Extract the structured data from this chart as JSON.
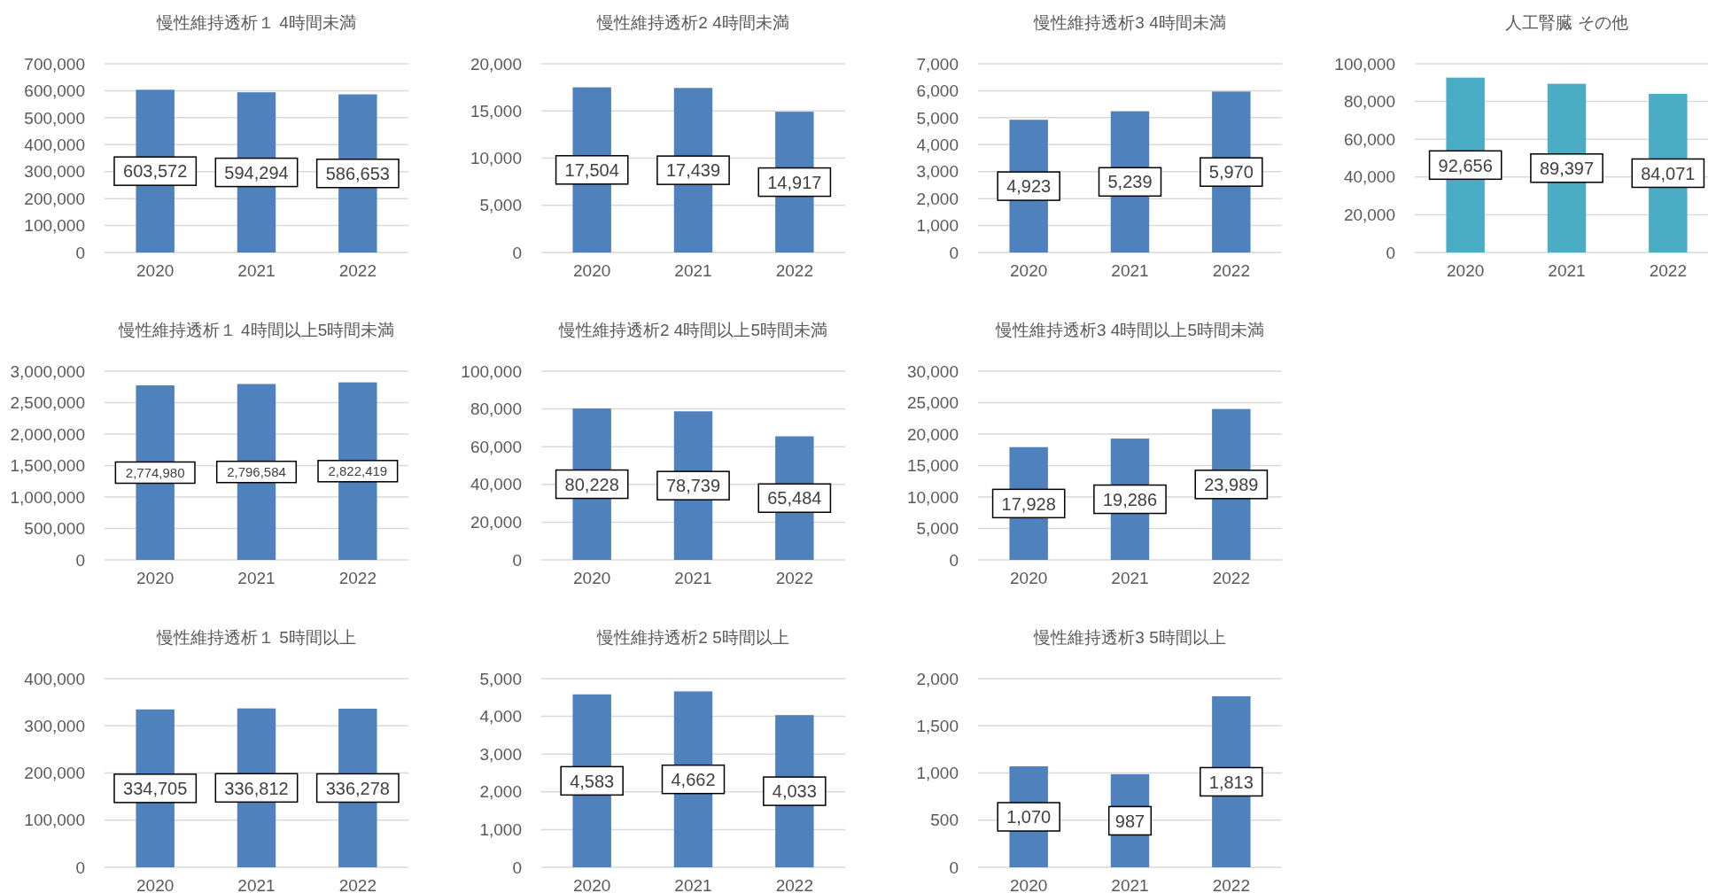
{
  "chart_data": [
    {
      "type": "bar",
      "title": "慢性維持透析１ 4時間未満",
      "categories": [
        "2020",
        "2021",
        "2022"
      ],
      "values": [
        603572,
        594294,
        586653
      ],
      "color": "#4f81bd",
      "ylim": [
        0,
        700000
      ],
      "yticks": [
        {
          "value": 0,
          "label": "0"
        },
        {
          "value": 100000,
          "label": "100,000"
        },
        {
          "value": 200000,
          "label": "200,000"
        },
        {
          "value": 300000,
          "label": "300,000"
        },
        {
          "value": 400000,
          "label": "400,000"
        },
        {
          "value": 500000,
          "label": "500,000"
        },
        {
          "value": 600000,
          "label": "600,000"
        },
        {
          "value": 700000,
          "label": "700,000"
        }
      ],
      "grid": "y",
      "value_labels": [
        "603,572",
        "594,294",
        "586,653"
      ]
    },
    {
      "type": "bar",
      "title": "慢性維持透析2 4時間未満",
      "categories": [
        "2020",
        "2021",
        "2022"
      ],
      "values": [
        17504,
        17439,
        14917
      ],
      "color": "#4f81bd",
      "ylim": [
        0,
        20000
      ],
      "yticks": [
        {
          "value": 0,
          "label": "0"
        },
        {
          "value": 5000,
          "label": "5,000"
        },
        {
          "value": 10000,
          "label": "10,000"
        },
        {
          "value": 15000,
          "label": "15,000"
        },
        {
          "value": 20000,
          "label": "20,000"
        }
      ],
      "grid": "y",
      "value_labels": [
        "17,504",
        "17,439",
        "14,917"
      ]
    },
    {
      "type": "bar",
      "title": "慢性維持透析3 4時間未満",
      "categories": [
        "2020",
        "2021",
        "2022"
      ],
      "values": [
        4923,
        5239,
        5970
      ],
      "color": "#4f81bd",
      "ylim": [
        0,
        7000
      ],
      "yticks": [
        {
          "value": 0,
          "label": "0"
        },
        {
          "value": 1000,
          "label": "1,000"
        },
        {
          "value": 2000,
          "label": "2,000"
        },
        {
          "value": 3000,
          "label": "3,000"
        },
        {
          "value": 4000,
          "label": "4,000"
        },
        {
          "value": 5000,
          "label": "5,000"
        },
        {
          "value": 6000,
          "label": "6,000"
        },
        {
          "value": 7000,
          "label": "7,000"
        }
      ],
      "grid": "y",
      "value_labels": [
        "4,923",
        "5,239",
        "5,970"
      ]
    },
    {
      "type": "bar",
      "title": "人工腎臓 その他",
      "categories": [
        "2020",
        "2021",
        "2022"
      ],
      "values": [
        92656,
        89397,
        84071
      ],
      "color": "#4bacc6",
      "ylim": [
        0,
        100000
      ],
      "yticks": [
        {
          "value": 0,
          "label": "0"
        },
        {
          "value": 20000,
          "label": "20,000"
        },
        {
          "value": 40000,
          "label": "40,000"
        },
        {
          "value": 60000,
          "label": "60,000"
        },
        {
          "value": 80000,
          "label": "80,000"
        },
        {
          "value": 100000,
          "label": "100,000"
        }
      ],
      "grid": "y",
      "value_labels": [
        "92,656",
        "89,397",
        "84,071"
      ]
    },
    {
      "type": "bar",
      "title": "慢性維持透析１ 4時間以上5時間未満",
      "categories": [
        "2020",
        "2021",
        "2022"
      ],
      "values": [
        2774980,
        2796584,
        2822419
      ],
      "color": "#4f81bd",
      "ylim": [
        0,
        3000000
      ],
      "yticks": [
        {
          "value": 0,
          "label": "0"
        },
        {
          "value": 500000,
          "label": "500,000"
        },
        {
          "value": 1000000,
          "label": "1,000,000"
        },
        {
          "value": 1500000,
          "label": "1,500,000"
        },
        {
          "value": 2000000,
          "label": "2,000,000"
        },
        {
          "value": 2500000,
          "label": "2,500,000"
        },
        {
          "value": 3000000,
          "label": "3,000,000"
        }
      ],
      "grid": "y",
      "value_labels": [
        "2,774,980",
        "2,796,584",
        "2,822,419"
      ]
    },
    {
      "type": "bar",
      "title": "慢性維持透析2 4時間以上5時間未満",
      "categories": [
        "2020",
        "2021",
        "2022"
      ],
      "values": [
        80228,
        78739,
        65484
      ],
      "color": "#4f81bd",
      "ylim": [
        0,
        100000
      ],
      "yticks": [
        {
          "value": 0,
          "label": "0"
        },
        {
          "value": 20000,
          "label": "20,000"
        },
        {
          "value": 40000,
          "label": "40,000"
        },
        {
          "value": 60000,
          "label": "60,000"
        },
        {
          "value": 80000,
          "label": "80,000"
        },
        {
          "value": 100000,
          "label": "100,000"
        }
      ],
      "grid": "y",
      "value_labels": [
        "80,228",
        "78,739",
        "65,484"
      ]
    },
    {
      "type": "bar",
      "title": "慢性維持透析3 4時間以上5時間未満",
      "categories": [
        "2020",
        "2021",
        "2022"
      ],
      "values": [
        17928,
        19286,
        23989
      ],
      "color": "#4f81bd",
      "ylim": [
        0,
        30000
      ],
      "yticks": [
        {
          "value": 0,
          "label": "0"
        },
        {
          "value": 5000,
          "label": "5,000"
        },
        {
          "value": 10000,
          "label": "10,000"
        },
        {
          "value": 15000,
          "label": "15,000"
        },
        {
          "value": 20000,
          "label": "20,000"
        },
        {
          "value": 25000,
          "label": "25,000"
        },
        {
          "value": 30000,
          "label": "30,000"
        }
      ],
      "grid": "y",
      "value_labels": [
        "17,928",
        "19,286",
        "23,989"
      ]
    },
    {
      "type": "bar",
      "title": "慢性維持透析１ 5時間以上",
      "categories": [
        "2020",
        "2021",
        "2022"
      ],
      "values": [
        334705,
        336812,
        336278
      ],
      "color": "#4f81bd",
      "ylim": [
        0,
        400000
      ],
      "yticks": [
        {
          "value": 0,
          "label": "0"
        },
        {
          "value": 100000,
          "label": "100,000"
        },
        {
          "value": 200000,
          "label": "200,000"
        },
        {
          "value": 300000,
          "label": "300,000"
        },
        {
          "value": 400000,
          "label": "400,000"
        }
      ],
      "grid": "y",
      "value_labels": [
        "334,705",
        "336,812",
        "336,278"
      ]
    },
    {
      "type": "bar",
      "title": "慢性維持透析2 5時間以上",
      "categories": [
        "2020",
        "2021",
        "2022"
      ],
      "values": [
        4583,
        4662,
        4033
      ],
      "color": "#4f81bd",
      "ylim": [
        0,
        5000
      ],
      "yticks": [
        {
          "value": 0,
          "label": "0"
        },
        {
          "value": 1000,
          "label": "1,000"
        },
        {
          "value": 2000,
          "label": "2,000"
        },
        {
          "value": 3000,
          "label": "3,000"
        },
        {
          "value": 4000,
          "label": "4,000"
        },
        {
          "value": 5000,
          "label": "5,000"
        }
      ],
      "grid": "y",
      "value_labels": [
        "4,583",
        "4,662",
        "4,033"
      ]
    },
    {
      "type": "bar",
      "title": "慢性維持透析3 5時間以上",
      "categories": [
        "2020",
        "2021",
        "2022"
      ],
      "values": [
        1070,
        987,
        1813
      ],
      "color": "#4f81bd",
      "ylim": [
        0,
        2000
      ],
      "yticks": [
        {
          "value": 0,
          "label": "0"
        },
        {
          "value": 500,
          "label": "500"
        },
        {
          "value": 1000,
          "label": "1,000"
        },
        {
          "value": 1500,
          "label": "1,500"
        },
        {
          "value": 2000,
          "label": "2,000"
        }
      ],
      "grid": "y",
      "value_labels": [
        "1,070",
        "987",
        "1,813"
      ]
    }
  ]
}
